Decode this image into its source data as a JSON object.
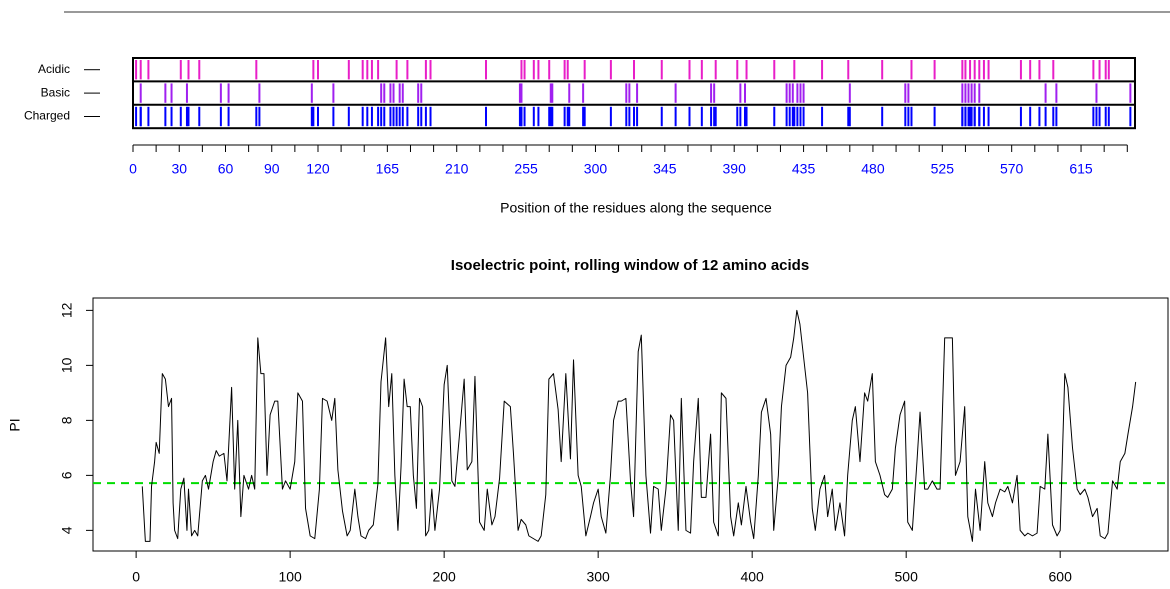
{
  "chart_data": [
    {
      "type": "track",
      "xlabel": "Position of the residues along the sequence",
      "xlim": [
        0,
        650
      ],
      "xticks": [
        0,
        30,
        60,
        90,
        120,
        165,
        210,
        255,
        300,
        345,
        390,
        435,
        480,
        525,
        570,
        615
      ],
      "minor_xticks": [
        15,
        45,
        75,
        105,
        135,
        150,
        180,
        195,
        225,
        240,
        270,
        285,
        315,
        330,
        360,
        375,
        405,
        420,
        450,
        465,
        495,
        510,
        540,
        555,
        585,
        600,
        630,
        645
      ],
      "tick_color": "#0000ff",
      "tracks": [
        {
          "name": "Acidic",
          "color": "#e81ec8",
          "positions": [
            2,
            5,
            10,
            31,
            36,
            43,
            80,
            117,
            120,
            140,
            149,
            152,
            155,
            159,
            171,
            178,
            190,
            193,
            229,
            252,
            254,
            260,
            263,
            270,
            280,
            282,
            293,
            310,
            325,
            343,
            361,
            369,
            378,
            392,
            398,
            416,
            429,
            447,
            464,
            486,
            505,
            520,
            538,
            540,
            543,
            546,
            549,
            552,
            555,
            576,
            582,
            588,
            597,
            623,
            627,
            631,
            633
          ]
        },
        {
          "name": "Basic",
          "color": "#a020f0",
          "positions": [
            5,
            21,
            25,
            35,
            57,
            62,
            82,
            116,
            130,
            161,
            163,
            167,
            169,
            173,
            175,
            185,
            187,
            251,
            252,
            271,
            272,
            283,
            292,
            320,
            322,
            327,
            352,
            375,
            377,
            394,
            397,
            424,
            426,
            428,
            431,
            433,
            435,
            465,
            501,
            503,
            538,
            540,
            542,
            544,
            546,
            549,
            592,
            599,
            625,
            647
          ]
        }
      ],
      "combined": {
        "name": "Charged",
        "color": "#0000ff"
      }
    },
    {
      "type": "line",
      "title": "Isoelectric point, rolling window of 12 amino acids",
      "ylabel": "PI",
      "color": "#000000",
      "xlim": [
        -28,
        670
      ],
      "ylim": [
        3.25,
        12.45
      ],
      "xticks": [
        0,
        100,
        200,
        300,
        400,
        500,
        600
      ],
      "yticks": [
        4,
        6,
        8,
        10,
        12
      ],
      "hline": {
        "value": 5.72,
        "color": "#00dd00"
      },
      "x": [
        4,
        6,
        9,
        10,
        12,
        13,
        15,
        17,
        19,
        21,
        23,
        24,
        25,
        27,
        29,
        31,
        33,
        34,
        36,
        38,
        40,
        43,
        45,
        47,
        50,
        52,
        54,
        57,
        59,
        62,
        64,
        66,
        68,
        70,
        73,
        75,
        77,
        79,
        81,
        83,
        85,
        87,
        90,
        92,
        95,
        97,
        100,
        103,
        105,
        108,
        110,
        113,
        116,
        119,
        121,
        124,
        127,
        129,
        131,
        134,
        137,
        139,
        142,
        144,
        146,
        149,
        151,
        154,
        157,
        159,
        162,
        164,
        166,
        168,
        170,
        172,
        174,
        176,
        178,
        180,
        182,
        184,
        186,
        188,
        190,
        192,
        194,
        197,
        200,
        202,
        205,
        207,
        210,
        213,
        215,
        218,
        220,
        223,
        226,
        228,
        231,
        233,
        236,
        239,
        243,
        245,
        248,
        250,
        253,
        255,
        258,
        261,
        263,
        266,
        268,
        271,
        274,
        276,
        279,
        282,
        284,
        287,
        289,
        292,
        295,
        297,
        300,
        302,
        305,
        308,
        310,
        313,
        315,
        318,
        321,
        323,
        326,
        328,
        331,
        334,
        336,
        339,
        341,
        344,
        347,
        349,
        352,
        354,
        357,
        360,
        362,
        365,
        367,
        370,
        373,
        375,
        378,
        380,
        383,
        386,
        388,
        391,
        393,
        396,
        399,
        401,
        404,
        406,
        409,
        412,
        414,
        417,
        419,
        422,
        425,
        427,
        429,
        431,
        434,
        436,
        439,
        441,
        444,
        447,
        449,
        452,
        454,
        457,
        460,
        462,
        465,
        467,
        470,
        473,
        475,
        478,
        480,
        483,
        486,
        488,
        491,
        493,
        496,
        499,
        501,
        504,
        507,
        509,
        512,
        514,
        517,
        520,
        522,
        525,
        527,
        530,
        532,
        535,
        538,
        540,
        543,
        545,
        548,
        551,
        553,
        556,
        558,
        561,
        564,
        566,
        569,
        572,
        574,
        577,
        579,
        582,
        585,
        587,
        590,
        592,
        595,
        598,
        600,
        603,
        605,
        608,
        611,
        613,
        616,
        618,
        621,
        624,
        626,
        629,
        631,
        634,
        637,
        639,
        642,
        644,
        647,
        649
      ],
      "values": [
        5.6,
        3.6,
        3.6,
        5.6,
        6.5,
        7.2,
        6.8,
        9.7,
        9.5,
        8.5,
        8.8,
        5,
        4,
        3.7,
        5.5,
        5.9,
        4,
        5.5,
        3.8,
        4,
        3.8,
        5.8,
        6,
        5.5,
        6.5,
        6.9,
        6.7,
        6.8,
        5.8,
        9.2,
        5.5,
        8,
        4.5,
        6,
        5.5,
        6,
        5.5,
        11,
        9.7,
        9.7,
        6,
        8.2,
        8.7,
        8.7,
        5.5,
        5.8,
        5.5,
        6.5,
        9,
        8.7,
        4.8,
        3.8,
        3.7,
        5.5,
        8.8,
        8.7,
        8,
        8.8,
        6.2,
        4.7,
        3.8,
        4,
        5.5,
        4.5,
        3.8,
        3.7,
        4,
        4.2,
        5.7,
        9.4,
        11,
        8.5,
        9.7,
        6,
        4,
        6.3,
        9.5,
        8.5,
        8.5,
        6,
        4.8,
        8.8,
        8.5,
        3.8,
        4,
        5.5,
        4,
        5.5,
        9.3,
        10,
        5.8,
        5.6,
        7.5,
        9.5,
        6.2,
        6.5,
        9.6,
        4.3,
        4,
        5.5,
        4.2,
        4.5,
        5.9,
        8.7,
        8.5,
        6.8,
        4,
        4.4,
        4.2,
        3.8,
        3.7,
        3.6,
        3.8,
        5.3,
        9.5,
        9.7,
        8.4,
        6.5,
        9.7,
        6.6,
        10.2,
        6,
        5.6,
        3.8,
        4.5,
        5,
        5.5,
        4.5,
        3.9,
        6,
        8,
        8.7,
        8.7,
        8.8,
        5.8,
        4.5,
        10.5,
        11.1,
        6,
        3.9,
        5.6,
        5.5,
        4,
        5.5,
        8.2,
        8,
        4,
        8.8,
        4,
        3.9,
        6.5,
        8.8,
        5.2,
        5.2,
        7.5,
        4.3,
        3.8,
        9,
        8.8,
        4.5,
        3.8,
        5,
        4.2,
        5.6,
        4.3,
        3.7,
        6,
        8.3,
        8.8,
        7.5,
        4,
        6,
        8.5,
        10,
        10.3,
        11,
        12,
        11.5,
        10,
        9,
        4.8,
        4,
        5.5,
        6,
        4.5,
        5.5,
        4,
        5,
        3.8,
        6,
        8,
        8.5,
        6.5,
        9,
        8.7,
        9.7,
        6.5,
        6,
        5.3,
        5.2,
        5.5,
        7,
        8.2,
        8.7,
        4.3,
        4,
        6.5,
        8.3,
        5.5,
        5.5,
        5.8,
        5.5,
        5.5,
        11,
        11,
        11,
        6,
        6.5,
        8.5,
        4.5,
        3.6,
        5.5,
        4,
        6.5,
        5,
        4.5,
        5,
        5.5,
        5.4,
        5.6,
        5,
        6,
        4,
        3.8,
        3.9,
        3.8,
        3.9,
        5.6,
        5.5,
        7.5,
        4.2,
        3.8,
        4,
        9.7,
        9.2,
        7,
        5.5,
        5.3,
        5.5,
        5.2,
        4.5,
        4.8,
        3.8,
        3.7,
        3.9,
        5.8,
        5.5,
        6.5,
        6.8,
        7.5,
        8.5,
        9.4
      ]
    }
  ]
}
